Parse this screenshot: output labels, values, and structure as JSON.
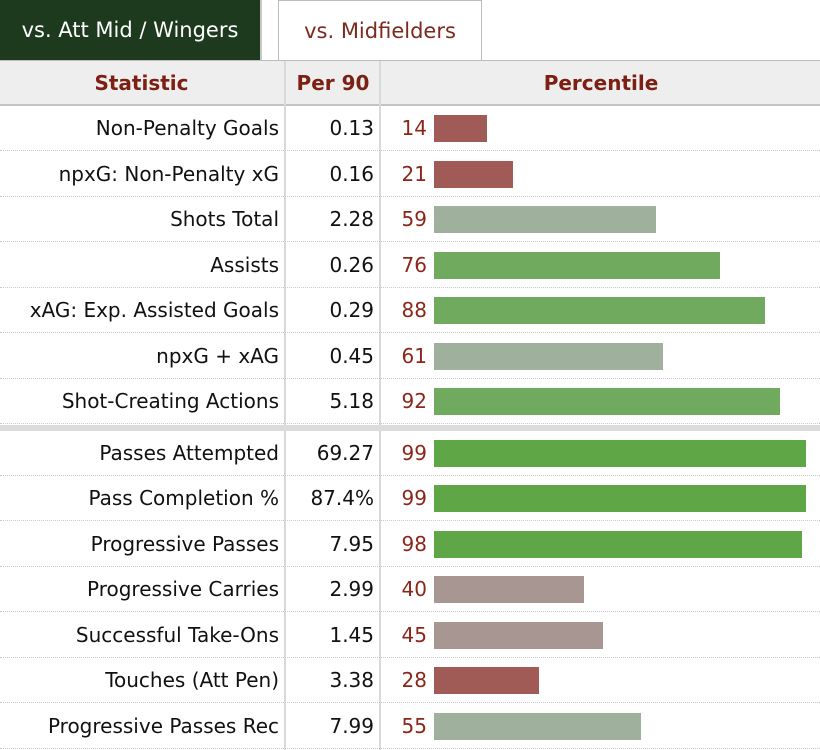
{
  "tabs": {
    "active": "vs. Att Mid / Wingers",
    "inactive": "vs. Midfielders"
  },
  "columns": {
    "statistic": "Statistic",
    "per90": "Per 90",
    "percentile": "Percentile"
  },
  "colors": {
    "tab_active_bg": "#1d3a1f",
    "header_text": "#7c2013",
    "percentile_text": "#8b2619",
    "bar_low": "#a15b57",
    "bar_mid_low": "#a89693",
    "bar_mid": "#9fb09d",
    "bar_high": "#6faa5e",
    "bar_top": "#5fa647"
  },
  "groups": [
    {
      "rows": [
        {
          "stat": "Non-Penalty Goals",
          "per90": "0.13",
          "percentile": 14
        },
        {
          "stat": "npxG: Non-Penalty xG",
          "per90": "0.16",
          "percentile": 21
        },
        {
          "stat": "Shots Total",
          "per90": "2.28",
          "percentile": 59
        },
        {
          "stat": "Assists",
          "per90": "0.26",
          "percentile": 76
        },
        {
          "stat": "xAG: Exp. Assisted Goals",
          "per90": "0.29",
          "percentile": 88
        },
        {
          "stat": "npxG + xAG",
          "per90": "0.45",
          "percentile": 61
        },
        {
          "stat": "Shot-Creating Actions",
          "per90": "5.18",
          "percentile": 92
        }
      ]
    },
    {
      "rows": [
        {
          "stat": "Passes Attempted",
          "per90": "69.27",
          "percentile": 99
        },
        {
          "stat": "Pass Completion %",
          "per90": "87.4%",
          "percentile": 99
        },
        {
          "stat": "Progressive Passes",
          "per90": "7.95",
          "percentile": 98
        },
        {
          "stat": "Progressive Carries",
          "per90": "2.99",
          "percentile": 40
        },
        {
          "stat": "Successful Take-Ons",
          "per90": "1.45",
          "percentile": 45
        },
        {
          "stat": "Touches (Att Pen)",
          "per90": "3.38",
          "percentile": 28
        },
        {
          "stat": "Progressive Passes Rec",
          "per90": "7.99",
          "percentile": 55
        }
      ]
    }
  ]
}
